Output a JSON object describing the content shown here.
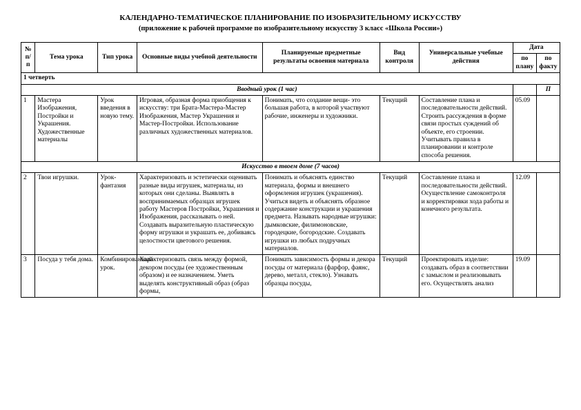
{
  "title": "КАЛЕНДАРНО-ТЕМАТИЧЕСКОЕ ПЛАНИРОВАНИЕ ПО ИЗОБРАЗИТЕЛЬНОМУ ИСКУССТВУ",
  "subtitle": "(приложение к рабочей программе по изобразительному искусству 3 класс «Школа России»)",
  "headers": {
    "num": "№ п/п",
    "topic": "Тема урока",
    "type": "Тип урока",
    "activity": "Основные виды учебной деятельности",
    "result": "Планируемые предметные результаты освоения материала",
    "control": "Вид контроля",
    "actions": "Универсальные учебные действия",
    "date": "Дата",
    "date_plan": "по плану",
    "date_fact": "по факту"
  },
  "quarter": "1 четверть",
  "section1": "Вводный урок  (1 час)",
  "section1_col2": "П",
  "section2": "Искусство в твоем доме (7 часов)",
  "rows": [
    {
      "num": "1",
      "topic": "Мастера Изображения, Постройки и Украшения. Художественные материалы",
      "type": "Урок введения в новую тему.",
      "activity": "Игровая, образная форма приобщения к искусству: три Брата-Мастера-Мастер Изображения, Мастер Украшения и Мастер-Постройки. Использование различных художественных материалов.",
      "result": "Понимать, что создание вещи- это большая работа, в которой участвуют рабочие, инженеры и художники.",
      "control": "Текущий",
      "actions": "Составление плана и последовательности действий. Строить рассуждения в форме связи простых суждений об объекте, его строении. Учитывать правила в планировании и контроле способа решения.",
      "date_plan": "05.09",
      "date_fact": ""
    },
    {
      "num": "2",
      "topic": "Твои игрушки.",
      "type": "Урок-фантазия",
      "activity": "Характеризовать и эстетически оценивать разные виды игрушек, материалы, из которых они сделаны. Выявлять в воспринимаемых образцах игрушек работу Мастеров Постройки, Украшения и Изображения, рассказывать о ней.  Создавать выразительную пластическую форму игрушки и украшать ее, добиваясь целостности цветового решения.",
      "result": "Понимать и объяснять единство материала, формы и внешнего оформления игрушек (украшения). Учиться видеть и объяснять образное содержание конструкции и украшения предмета. Называть народные игрушки: дымковские, филимоновские,  городецкие, богородские. Создавать игрушки из любых подручных материалов.",
      "control": "Текущий",
      "actions": "Составление плана и последовательности действий. Осуществление самоконтроля и корректировки хода работы и конечного результата.",
      "date_plan": "12.09",
      "date_fact": ""
    },
    {
      "num": "3",
      "topic": "Посуда у тебя дома.",
      "type": "Комбинированный урок.",
      "activity": "Характеризовать связь между формой, декором посуды (ее художественным образом) и ее назначением.   Уметь выделять конструктивный образ (образ формы,",
      "result": "Понимать зависимость формы и декора посуды от материала (фарфор, фаянс, дерево, металл, стекло). Узнавать образцы посуды,",
      "control": "Текущий",
      "actions": "Проектировать изделие: создавать образ в соответствии с замыслом и реализовывать его. Осуществлять анализ",
      "date_plan": "19.09",
      "date_fact": ""
    }
  ]
}
